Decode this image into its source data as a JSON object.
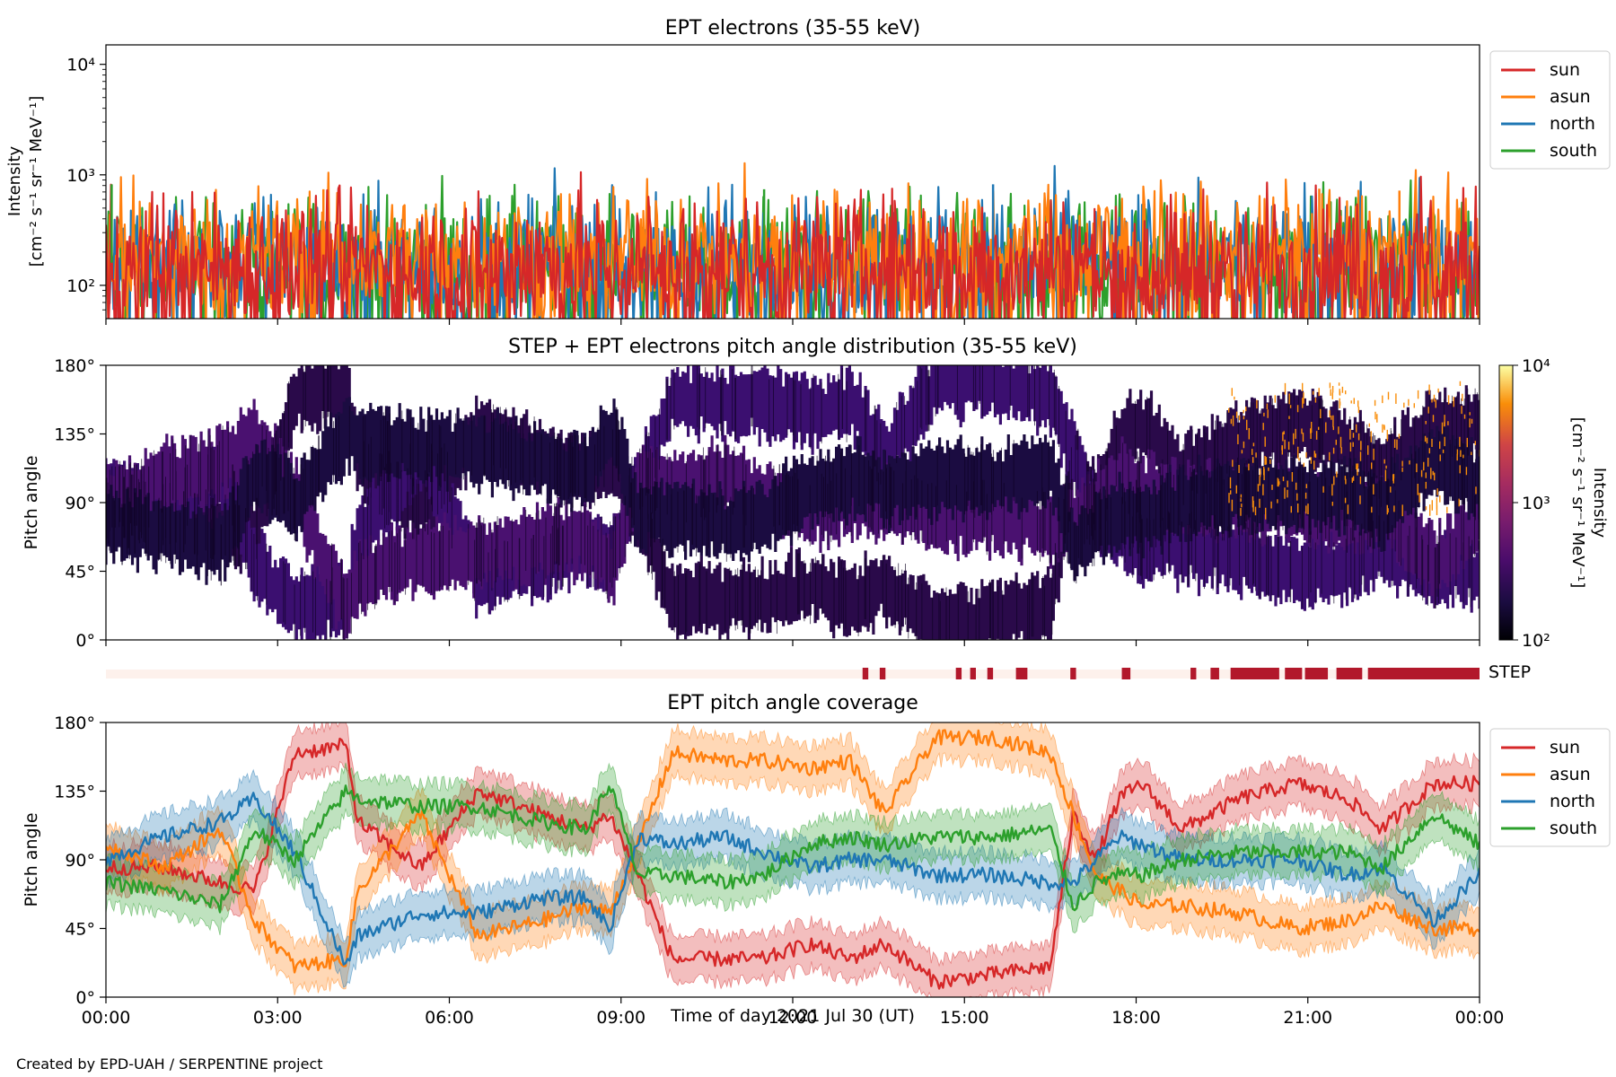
{
  "footer": {
    "credit": "Created by EPD-UAH / SERPENTINE project"
  },
  "chart_data": [
    {
      "type": "line",
      "title": "EPT electrons (35-55 keV)",
      "ylabel_lines": [
        "Intensity",
        "[cm⁻² s⁻¹ sr⁻¹ MeV⁻¹]"
      ],
      "yscale": "log",
      "ylim": [
        50,
        15000
      ],
      "y_ticks": [
        {
          "value": 100,
          "label": "10²"
        },
        {
          "value": 1000,
          "label": "10³"
        },
        {
          "value": 10000,
          "label": "10⁴"
        }
      ],
      "x_hours": [
        0,
        24
      ],
      "legend_position": "outside-right",
      "series": [
        {
          "name": "sun",
          "color": "#d62728",
          "typical": 150,
          "spread": 0.32
        },
        {
          "name": "asun",
          "color": "#ff7f0e",
          "typical": 190,
          "spread": 0.3
        },
        {
          "name": "north",
          "color": "#1f77b4",
          "typical": 170,
          "spread": 0.3
        },
        {
          "name": "south",
          "color": "#2ca02c",
          "typical": 160,
          "spread": 0.3
        }
      ],
      "draw_order": [
        "south",
        "north",
        "asun",
        "sun"
      ],
      "peaks": [
        {
          "series": "south",
          "hour": 0.1,
          "value": 820
        },
        {
          "series": "asun",
          "hour": 3.8,
          "value": 740
        },
        {
          "series": "south",
          "hour": 11.5,
          "value": 740
        },
        {
          "series": "north",
          "hour": 15.5,
          "value": 820
        },
        {
          "series": "asun",
          "hour": 21.2,
          "value": 750
        },
        {
          "series": "asun",
          "hour": 22.6,
          "value": 720
        }
      ]
    },
    {
      "type": "heatmap",
      "title": "STEP + EPT electrons pitch angle distribution (35-55 keV)",
      "ylabel": "Pitch angle",
      "ylim": [
        0,
        180
      ],
      "y_ticks": [
        "0°",
        "45°",
        "90°",
        "135°",
        "180°"
      ],
      "colorbar": {
        "label_lines": [
          "Intensity",
          "[cm⁻² s⁻¹ sr⁻¹ MeV⁻¹]"
        ],
        "scale": "log",
        "range": [
          100,
          10000
        ],
        "ticks": [
          "10²",
          "10³",
          "10⁴"
        ],
        "colormap": "inferno"
      },
      "step_indicator": {
        "label": "STEP",
        "active_color": "#b2182b",
        "inactive_color": "#fdf1ec",
        "active_hours": [
          [
            13.22,
            13.32
          ],
          [
            13.52,
            13.62
          ],
          [
            14.85,
            14.95
          ],
          [
            15.1,
            15.2
          ],
          [
            15.4,
            15.5
          ],
          [
            15.9,
            16.1
          ],
          [
            16.85,
            16.95
          ],
          [
            17.75,
            17.9
          ],
          [
            18.95,
            19.05
          ],
          [
            19.3,
            19.45
          ],
          [
            19.65,
            20.5
          ],
          [
            20.6,
            20.9
          ],
          [
            20.95,
            21.35
          ],
          [
            21.5,
            21.95
          ],
          [
            22.05,
            24.0
          ]
        ]
      }
    },
    {
      "type": "line",
      "title": "EPT pitch angle coverage",
      "ylabel": "Pitch angle",
      "ylim": [
        0,
        180
      ],
      "y_ticks": [
        "0°",
        "45°",
        "90°",
        "135°",
        "180°"
      ],
      "xlabel": "Time of day 2021 Jul 30 (UT)",
      "x_ticks": [
        "00:00",
        "03:00",
        "06:00",
        "09:00",
        "12:00",
        "15:00",
        "18:00",
        "21:00",
        "00:00"
      ],
      "legend_position": "outside-right",
      "band_halfwidth_deg": 15,
      "series": [
        {
          "name": "sun",
          "color": "#d62728",
          "hours": [
            0,
            1,
            2,
            2.6,
            3.3,
            4.2,
            4.4,
            5.5,
            6.5,
            7.6,
            8.4,
            8.8,
            9.3,
            9.9,
            10.8,
            11.5,
            12.3,
            13.0,
            13.6,
            14.5,
            15.5,
            16.5,
            16.9,
            17.3,
            17.7,
            18.1,
            18.8,
            19.8,
            20.8,
            21.7,
            22.3,
            23.2,
            24
          ],
          "values": [
            85,
            85,
            75,
            70,
            160,
            165,
            115,
            85,
            135,
            120,
            110,
            120,
            80,
            25,
            25,
            25,
            35,
            25,
            35,
            10,
            15,
            20,
            120,
            90,
            130,
            140,
            110,
            130,
            140,
            130,
            110,
            140,
            140
          ]
        },
        {
          "name": "asun",
          "color": "#ff7f0e",
          "hours": [
            0,
            1,
            2,
            2.6,
            3.3,
            4.2,
            4.4,
            5.5,
            6.5,
            7.6,
            8.4,
            8.8,
            9.3,
            9.9,
            10.8,
            11.5,
            12.3,
            13.0,
            13.6,
            14.5,
            15.5,
            16.5,
            16.9,
            17.3,
            17.7,
            18.1,
            18.8,
            19.8,
            20.8,
            21.7,
            22.3,
            23.2,
            24
          ],
          "values": [
            100,
            85,
            110,
            50,
            20,
            25,
            70,
            120,
            40,
            50,
            60,
            55,
            100,
            160,
            155,
            155,
            150,
            155,
            120,
            170,
            170,
            160,
            120,
            80,
            70,
            60,
            60,
            55,
            45,
            50,
            60,
            45,
            45
          ]
        },
        {
          "name": "north",
          "color": "#1f77b4",
          "hours": [
            0,
            1,
            2,
            2.6,
            3.3,
            4.2,
            4.4,
            5.5,
            6.5,
            7.6,
            8.4,
            8.8,
            9.3,
            9.9,
            10.8,
            11.5,
            12.3,
            13.0,
            13.6,
            14.5,
            15.5,
            16.5,
            16.9,
            17.3,
            17.7,
            18.1,
            18.8,
            19.8,
            20.8,
            21.7,
            22.3,
            23.2,
            24
          ],
          "values": [
            90,
            105,
            115,
            130,
            95,
            20,
            40,
            55,
            55,
            65,
            65,
            45,
            105,
            100,
            105,
            95,
            85,
            90,
            90,
            80,
            80,
            75,
            75,
            90,
            105,
            100,
            90,
            90,
            90,
            80,
            85,
            50,
            80
          ]
        },
        {
          "name": "south",
          "color": "#2ca02c",
          "hours": [
            0,
            1,
            2,
            2.6,
            3.3,
            4.2,
            4.4,
            5.5,
            6.5,
            7.6,
            8.4,
            8.8,
            9.3,
            9.9,
            10.8,
            11.5,
            12.3,
            13.0,
            13.6,
            14.5,
            15.5,
            16.5,
            16.9,
            17.3,
            17.7,
            18.1,
            18.8,
            19.8,
            20.8,
            21.7,
            22.3,
            23.2,
            24
          ],
          "values": [
            75,
            70,
            60,
            110,
            90,
            135,
            130,
            125,
            125,
            115,
            110,
            140,
            80,
            80,
            75,
            80,
            100,
            105,
            100,
            105,
            105,
            110,
            60,
            75,
            80,
            80,
            90,
            95,
            95,
            95,
            85,
            120,
            100
          ]
        }
      ]
    }
  ]
}
